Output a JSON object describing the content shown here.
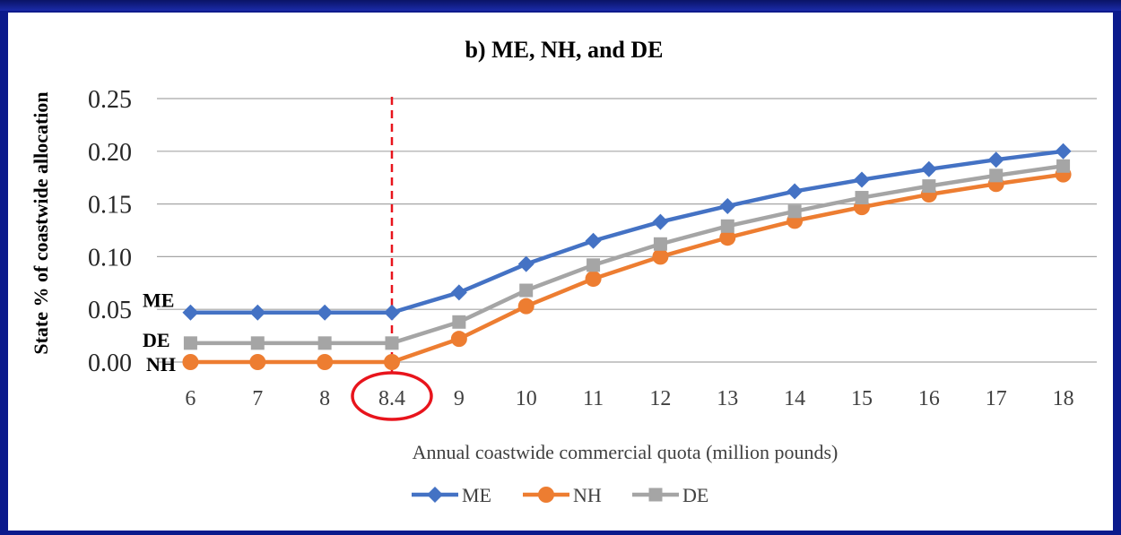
{
  "chart_data": {
    "type": "line",
    "title": "b) ME, NH, and DE",
    "xlabel": "Annual coastwide commercial quota (million pounds)",
    "ylabel": "State  % of coastwide allocation",
    "categories": [
      "6",
      "7",
      "8",
      "8.4",
      "9",
      "10",
      "11",
      "12",
      "13",
      "14",
      "15",
      "16",
      "17",
      "18"
    ],
    "ylim": [
      0,
      0.25
    ],
    "yticks": [
      "0.00",
      "0.05",
      "0.10",
      "0.15",
      "0.20",
      "0.25"
    ],
    "grid": true,
    "legend_position": "bottom",
    "series": [
      {
        "name": "ME",
        "color": "#4472c4",
        "marker": "diamond",
        "values": [
          0.047,
          0.047,
          0.047,
          0.047,
          0.066,
          0.093,
          0.115,
          0.133,
          0.148,
          0.162,
          0.173,
          0.183,
          0.192,
          0.2
        ]
      },
      {
        "name": "NH",
        "color": "#ed7d31",
        "marker": "circle",
        "values": [
          0.0,
          0.0,
          0.0,
          0.0,
          0.022,
          0.053,
          0.079,
          0.1,
          0.118,
          0.134,
          0.147,
          0.159,
          0.169,
          0.178
        ]
      },
      {
        "name": "DE",
        "color": "#a5a5a5",
        "marker": "square",
        "values": [
          0.018,
          0.018,
          0.018,
          0.018,
          0.038,
          0.068,
          0.092,
          0.112,
          0.129,
          0.143,
          0.156,
          0.167,
          0.177,
          0.186
        ]
      }
    ],
    "annotations": {
      "series_labels": [
        "ME",
        "DE",
        "NH"
      ],
      "dashed_vline_at": "8.4",
      "dashed_vline_color": "#e8141c",
      "circled_tick": "8.4",
      "circle_color": "#e8141c"
    }
  }
}
